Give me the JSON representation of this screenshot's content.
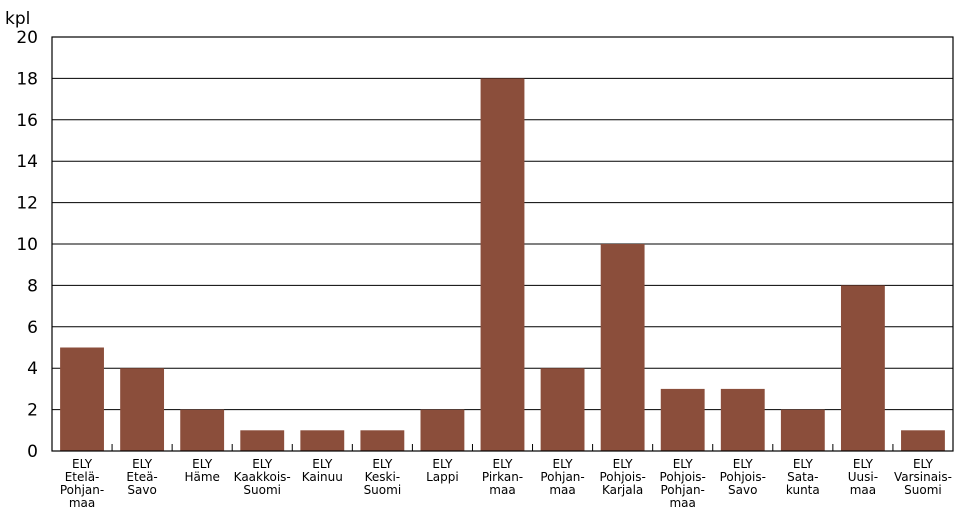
{
  "chart_data": {
    "type": "bar",
    "ylabel": "kpl",
    "ylim": [
      0,
      20
    ],
    "yticks": [
      0,
      2,
      4,
      6,
      8,
      10,
      12,
      14,
      16,
      18,
      20
    ],
    "grid": true,
    "bar_color": "#8B4E3B",
    "categories": [
      [
        "ELY",
        "Etelä-",
        "Pohjan-",
        "maa"
      ],
      [
        "ELY",
        "Eteä-",
        "Savo"
      ],
      [
        "ELY",
        "Häme"
      ],
      [
        "ELY",
        "Kaakkois-",
        "Suomi"
      ],
      [
        "ELY",
        "Kainuu"
      ],
      [
        "ELY",
        "Keski-",
        "Suomi"
      ],
      [
        "ELY",
        "Lappi"
      ],
      [
        "ELY",
        "Pirkan-",
        "maa"
      ],
      [
        "ELY",
        "Pohjan-",
        "maa"
      ],
      [
        "ELY",
        "Pohjois-",
        "Karjala"
      ],
      [
        "ELY",
        "Pohjois-",
        "Pohjan-",
        "maa"
      ],
      [
        "ELY",
        "Pohjois-",
        "Savo"
      ],
      [
        "ELY",
        "Sata-",
        "kunta"
      ],
      [
        "ELY",
        "Uusi-",
        "maa"
      ],
      [
        "ELY",
        "Varsinais-",
        "Suomi"
      ]
    ],
    "values": [
      5,
      4,
      2,
      1,
      1,
      1,
      2,
      18,
      4,
      10,
      3,
      3,
      2,
      8,
      1
    ]
  }
}
